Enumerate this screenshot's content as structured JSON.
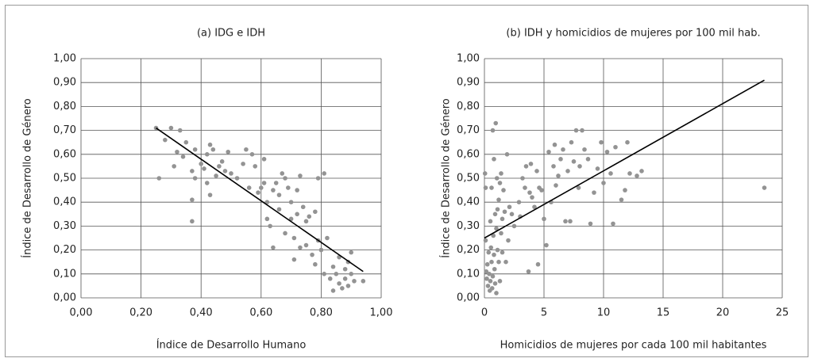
{
  "chart_data": [
    {
      "type": "scatter",
      "title": "(a) IDG e IDH",
      "xlabel": "Índice de Desarrollo Humano",
      "ylabel": "Índice de Desarrollo de Género",
      "color": "#939393",
      "grid": true,
      "xlim": [
        0,
        1
      ],
      "ylim": [
        0,
        1
      ],
      "xticks": [
        {
          "value": 0,
          "label": "0,00"
        },
        {
          "value": 0.2,
          "label": "0,20"
        },
        {
          "value": 0.4,
          "label": "0,40"
        },
        {
          "value": 0.6,
          "label": "0,60"
        },
        {
          "value": 0.8,
          "label": "0,80"
        },
        {
          "value": 1,
          "label": "1,00"
        }
      ],
      "yticks": [
        {
          "value": 0,
          "label": "0,00"
        },
        {
          "value": 0.1,
          "label": "0,10"
        },
        {
          "value": 0.2,
          "label": "0,20"
        },
        {
          "value": 0.3,
          "label": "0,30"
        },
        {
          "value": 0.4,
          "label": "0,40"
        },
        {
          "value": 0.5,
          "label": "0,50"
        },
        {
          "value": 0.6,
          "label": "0,60"
        },
        {
          "value": 0.7,
          "label": "0,70"
        },
        {
          "value": 0.8,
          "label": "0,80"
        },
        {
          "value": 0.9,
          "label": "0,90"
        },
        {
          "value": 1,
          "label": "1,00"
        }
      ],
      "x": [
        0.25,
        0.26,
        0.28,
        0.3,
        0.31,
        0.32,
        0.33,
        0.34,
        0.35,
        0.37,
        0.37,
        0.37,
        0.38,
        0.38,
        0.4,
        0.41,
        0.42,
        0.42,
        0.43,
        0.43,
        0.44,
        0.45,
        0.46,
        0.47,
        0.48,
        0.49,
        0.5,
        0.52,
        0.54,
        0.55,
        0.56,
        0.57,
        0.58,
        0.59,
        0.6,
        0.61,
        0.61,
        0.62,
        0.62,
        0.63,
        0.64,
        0.64,
        0.65,
        0.66,
        0.66,
        0.67,
        0.68,
        0.68,
        0.69,
        0.7,
        0.7,
        0.71,
        0.71,
        0.72,
        0.72,
        0.73,
        0.73,
        0.74,
        0.75,
        0.75,
        0.76,
        0.77,
        0.78,
        0.78,
        0.79,
        0.79,
        0.8,
        0.81,
        0.81,
        0.82,
        0.83,
        0.84,
        0.84,
        0.85,
        0.86,
        0.86,
        0.87,
        0.88,
        0.88,
        0.89,
        0.89,
        0.9,
        0.9,
        0.91,
        0.94
      ],
      "y": [
        0.71,
        0.5,
        0.66,
        0.71,
        0.55,
        0.61,
        0.7,
        0.59,
        0.65,
        0.41,
        0.32,
        0.53,
        0.62,
        0.5,
        0.56,
        0.54,
        0.48,
        0.6,
        0.64,
        0.43,
        0.62,
        0.51,
        0.55,
        0.57,
        0.53,
        0.61,
        0.52,
        0.5,
        0.56,
        0.62,
        0.46,
        0.6,
        0.55,
        0.44,
        0.46,
        0.48,
        0.58,
        0.33,
        0.4,
        0.3,
        0.21,
        0.45,
        0.48,
        0.43,
        0.37,
        0.52,
        0.27,
        0.5,
        0.46,
        0.4,
        0.33,
        0.25,
        0.16,
        0.45,
        0.35,
        0.51,
        0.21,
        0.38,
        0.32,
        0.22,
        0.34,
        0.18,
        0.36,
        0.14,
        0.5,
        0.24,
        0.2,
        0.52,
        0.1,
        0.25,
        0.08,
        0.03,
        0.13,
        0.1,
        0.06,
        0.17,
        0.04,
        0.12,
        0.08,
        0.15,
        0.05,
        0.1,
        0.19,
        0.07,
        0.07
      ],
      "trendline": {
        "color": "#000000",
        "x": [
          0.25,
          0.94
        ],
        "y": [
          0.71,
          0.11
        ]
      }
    },
    {
      "type": "scatter",
      "title": "(b) IDH y homicidios de mujeres por 100 mil hab.",
      "xlabel": "Homicidios de mujeres por cada 100 mil habitantes",
      "ylabel": "Índice de Desarrollo de Género",
      "color": "#939393",
      "grid": true,
      "xlim": [
        0,
        25
      ],
      "ylim": [
        0,
        1
      ],
      "xticks": [
        0,
        5,
        10,
        15,
        20,
        25
      ],
      "yticks": [
        {
          "value": 0,
          "label": "0,00"
        },
        {
          "value": 0.1,
          "label": "0,10"
        },
        {
          "value": 0.2,
          "label": "0,20"
        },
        {
          "value": 0.3,
          "label": "0,30"
        },
        {
          "value": 0.4,
          "label": "0,40"
        },
        {
          "value": 0.5,
          "label": "0,50"
        },
        {
          "value": 0.6,
          "label": "0,60"
        },
        {
          "value": 0.7,
          "label": "0,70"
        },
        {
          "value": 0.8,
          "label": "0,80"
        },
        {
          "value": 0.9,
          "label": "0,90"
        },
        {
          "value": 1,
          "label": "1,00"
        }
      ],
      "x": [
        0.05,
        0.1,
        0.1,
        0.15,
        0.2,
        0.25,
        0.3,
        0.35,
        0.4,
        0.45,
        0.5,
        0.5,
        0.55,
        0.6,
        0.6,
        0.65,
        0.7,
        0.7,
        0.75,
        0.8,
        0.8,
        0.85,
        0.9,
        0.9,
        0.95,
        1.0,
        1.0,
        1.05,
        1.1,
        1.1,
        1.2,
        1.2,
        1.3,
        1.3,
        1.4,
        1.4,
        1.5,
        1.5,
        1.6,
        1.7,
        1.8,
        1.9,
        2.0,
        2.1,
        2.3,
        2.5,
        2.9,
        3.0,
        3.2,
        3.4,
        3.5,
        3.7,
        3.8,
        3.9,
        4.0,
        4.2,
        4.4,
        4.5,
        4.6,
        4.8,
        5.0,
        5.2,
        5.4,
        5.6,
        5.8,
        5.9,
        6.0,
        6.2,
        6.4,
        6.6,
        6.8,
        7.0,
        7.2,
        7.3,
        7.5,
        7.7,
        7.9,
        8.0,
        8.2,
        8.4,
        8.7,
        8.9,
        9.2,
        9.5,
        9.8,
        10.0,
        10.3,
        10.6,
        10.8,
        11.0,
        11.5,
        11.8,
        12.0,
        12.2,
        12.8,
        13.2,
        23.5
      ],
      "y": [
        0.52,
        0.46,
        0.24,
        0.11,
        0.08,
        0.14,
        0.05,
        0.19,
        0.1,
        0.03,
        0.32,
        0.07,
        0.21,
        0.15,
        0.46,
        0.04,
        0.7,
        0.09,
        0.26,
        0.18,
        0.58,
        0.12,
        0.06,
        0.35,
        0.73,
        0.02,
        0.29,
        0.5,
        0.2,
        0.37,
        0.15,
        0.41,
        0.48,
        0.07,
        0.27,
        0.52,
        0.33,
        0.19,
        0.45,
        0.36,
        0.15,
        0.6,
        0.24,
        0.38,
        0.35,
        0.3,
        0.4,
        0.34,
        0.5,
        0.46,
        0.55,
        0.11,
        0.44,
        0.56,
        0.42,
        0.38,
        0.53,
        0.14,
        0.46,
        0.45,
        0.33,
        0.22,
        0.61,
        0.4,
        0.55,
        0.64,
        0.47,
        0.51,
        0.58,
        0.62,
        0.32,
        0.53,
        0.32,
        0.65,
        0.57,
        0.7,
        0.46,
        0.55,
        0.7,
        0.62,
        0.58,
        0.31,
        0.44,
        0.54,
        0.65,
        0.48,
        0.61,
        0.52,
        0.31,
        0.63,
        0.41,
        0.45,
        0.65,
        0.52,
        0.51,
        0.53,
        0.46
      ],
      "trendline": {
        "color": "#000000",
        "x": [
          0,
          23.5
        ],
        "y": [
          0.25,
          0.91
        ]
      }
    }
  ]
}
